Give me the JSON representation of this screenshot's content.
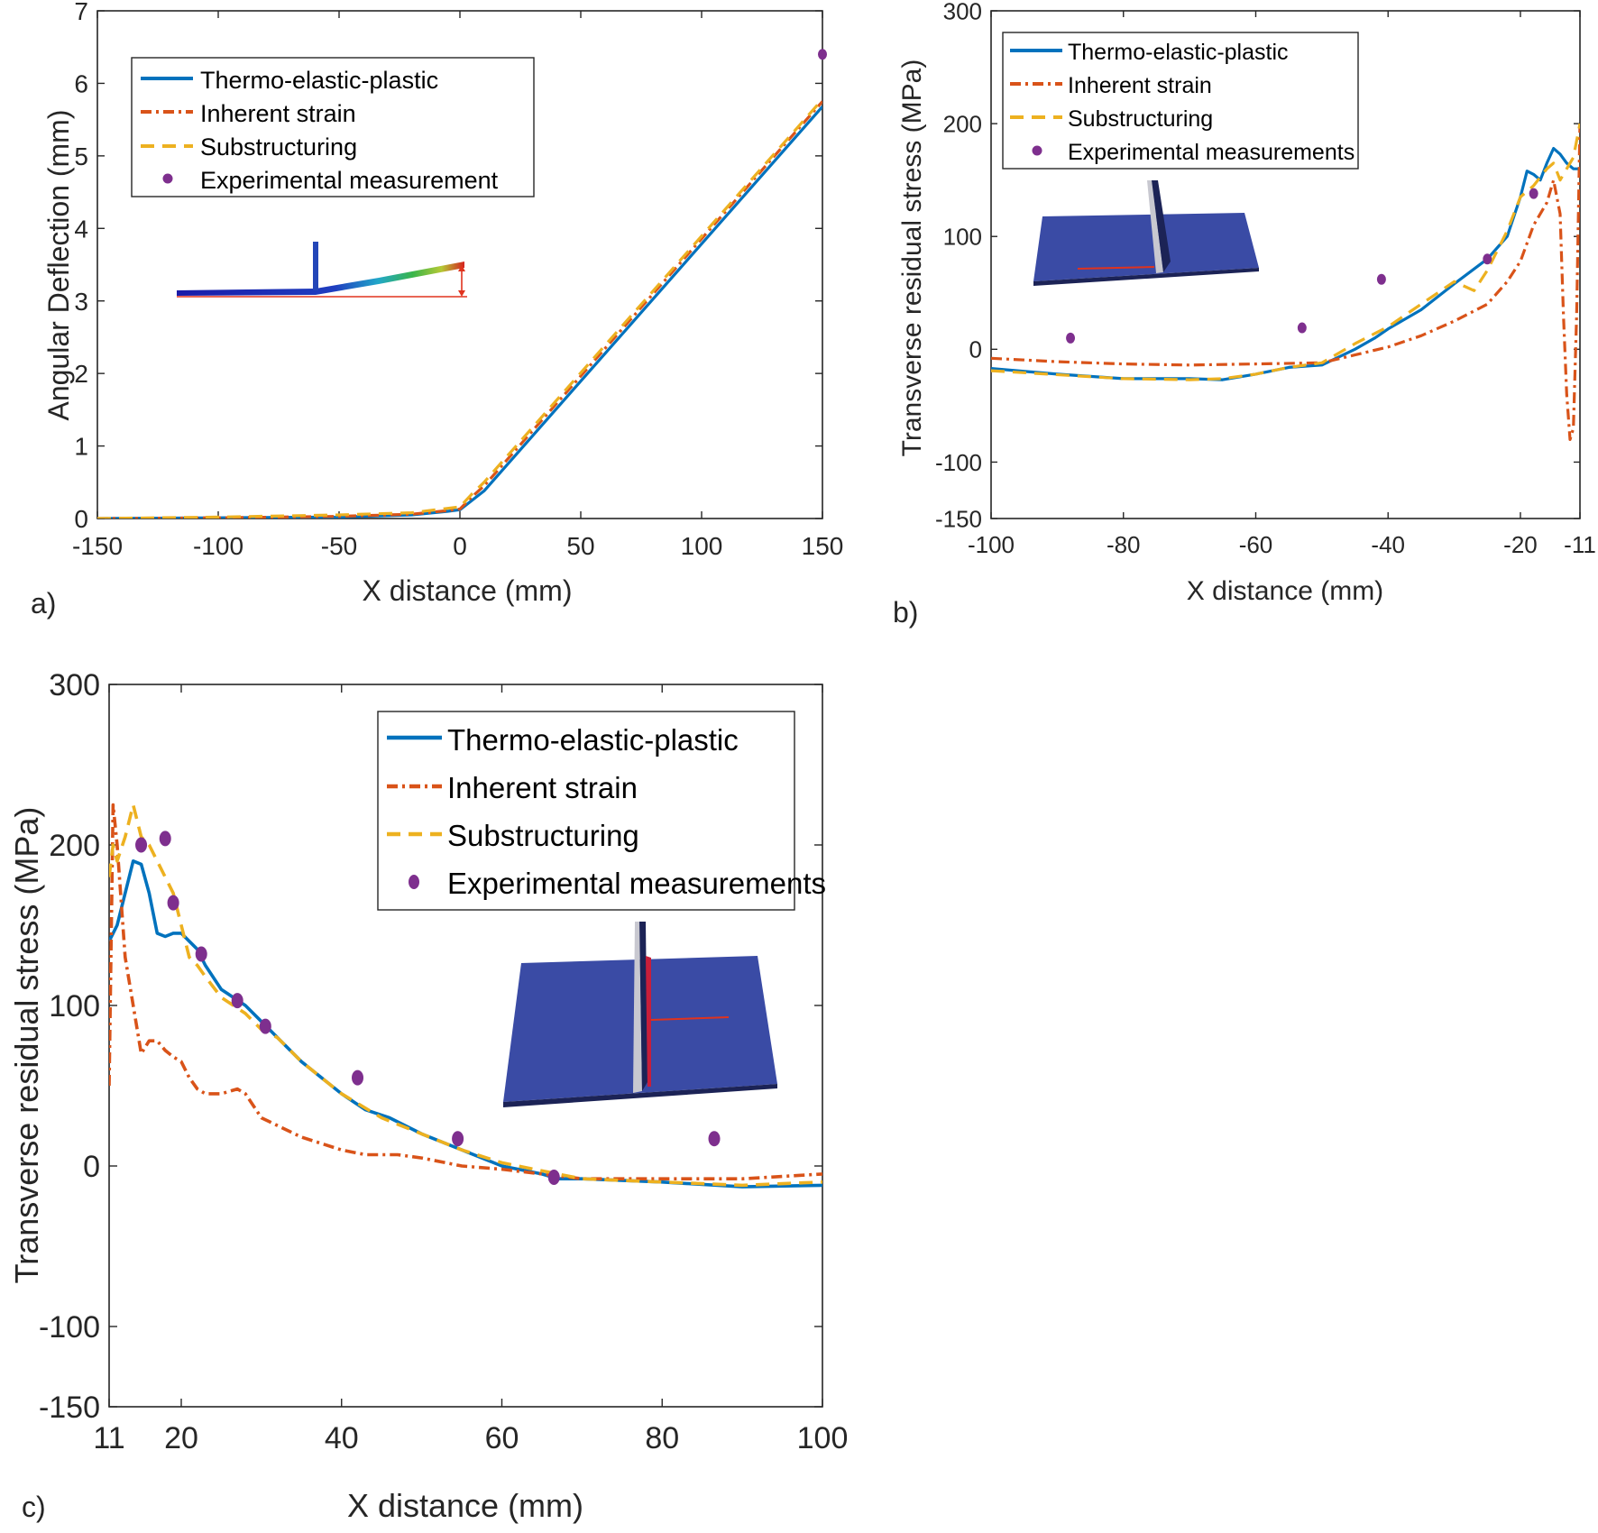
{
  "colors": {
    "tep": "#0072BD",
    "inherent": "#D95319",
    "substructuring": "#EDB120",
    "experimental": "#7E2F8E",
    "plate": "#3A4BA5",
    "axis": "#262626"
  },
  "chart_data": [
    {
      "panel": "a)",
      "type": "line",
      "title": "",
      "xlabel": "X distance (mm)",
      "ylabel": "Angular Deflection (mm)",
      "xlim": [
        -150,
        150
      ],
      "ylim": [
        0,
        7
      ],
      "xticks": [
        -150,
        -100,
        -50,
        0,
        50,
        100,
        150
      ],
      "yticks": [
        0,
        1,
        2,
        3,
        4,
        5,
        6,
        7
      ],
      "legend_position": "top-left",
      "inset": "t-joint-deflection",
      "series": [
        {
          "name": "Thermo-elastic-plastic",
          "style": "solid",
          "color_key": "tep",
          "x": [
            -150,
            -100,
            -50,
            -20,
            -5,
            0,
            5,
            10,
            150
          ],
          "y": [
            0,
            0.01,
            0.02,
            0.05,
            0.1,
            0.12,
            0.25,
            0.38,
            5.68
          ]
        },
        {
          "name": "Inherent strain",
          "style": "dashdot",
          "color_key": "inherent",
          "x": [
            -150,
            -100,
            -50,
            -20,
            -5,
            0,
            5,
            10,
            150
          ],
          "y": [
            0,
            0.01,
            0.03,
            0.06,
            0.11,
            0.13,
            0.3,
            0.45,
            5.75
          ]
        },
        {
          "name": "Substructuring",
          "style": "dashed",
          "color_key": "substructuring",
          "x": [
            -150,
            -100,
            -50,
            -20,
            -5,
            0,
            5,
            10,
            150
          ],
          "y": [
            0,
            0.02,
            0.05,
            0.08,
            0.14,
            0.16,
            0.34,
            0.5,
            5.78
          ]
        },
        {
          "name": "Experimental measurement",
          "style": "marker",
          "color_key": "experimental",
          "x": [
            150
          ],
          "y": [
            6.4
          ]
        }
      ]
    },
    {
      "panel": "b)",
      "type": "line",
      "title": "",
      "xlabel": "X distance (mm)",
      "ylabel": "Transverse residual stress (MPa)",
      "xlim": [
        -100,
        -11
      ],
      "ylim": [
        -150,
        300
      ],
      "xticks": [
        -100,
        -80,
        -60,
        -40,
        -20,
        -11
      ],
      "yticks": [
        -150,
        -100,
        0,
        100,
        200,
        300
      ],
      "legend_position": "top-left",
      "inset": "t-joint-plate",
      "series": [
        {
          "name": "Thermo-elastic-plastic",
          "style": "solid",
          "color_key": "tep",
          "x": [
            -100,
            -90,
            -80,
            -70,
            -65,
            -60,
            -55,
            -50,
            -45,
            -42,
            -40,
            -35,
            -30,
            -25,
            -22,
            -20,
            -19,
            -18,
            -17,
            -16,
            -15,
            -14,
            -13,
            -12,
            -11
          ],
          "y": [
            -17,
            -22,
            -26,
            -26,
            -27,
            -22,
            -16,
            -14,
            0,
            10,
            18,
            35,
            58,
            80,
            100,
            135,
            158,
            155,
            150,
            165,
            178,
            173,
            165,
            160,
            160
          ]
        },
        {
          "name": "Inherent strain",
          "style": "dashdot",
          "color_key": "inherent",
          "x": [
            -100,
            -90,
            -80,
            -70,
            -60,
            -50,
            -45,
            -40,
            -35,
            -30,
            -25,
            -22,
            -20,
            -18,
            -16,
            -15,
            -14,
            -13.5,
            -13,
            -12.5,
            -12,
            -11.5,
            -11
          ],
          "y": [
            -8,
            -11,
            -13,
            -14,
            -13,
            -12,
            -5,
            2,
            12,
            25,
            40,
            60,
            78,
            110,
            130,
            150,
            120,
            30,
            -40,
            -80,
            -70,
            30,
            200
          ]
        },
        {
          "name": "Substructuring",
          "style": "dashed",
          "color_key": "substructuring",
          "x": [
            -100,
            -80,
            -70,
            -65,
            -60,
            -55,
            -50,
            -45,
            -40,
            -35,
            -30,
            -27,
            -25,
            -22,
            -20,
            -18,
            -16,
            -15,
            -14,
            -13,
            -12,
            -11
          ],
          "y": [
            -19,
            -26,
            -27,
            -26,
            -22,
            -16,
            -12,
            5,
            20,
            40,
            60,
            52,
            70,
            105,
            135,
            145,
            160,
            165,
            150,
            160,
            170,
            200
          ]
        },
        {
          "name": "Experimental measurements",
          "style": "marker",
          "color_key": "experimental",
          "x": [
            -88,
            -53,
            -41,
            -25,
            -18
          ],
          "y": [
            10,
            19,
            62,
            80,
            138
          ]
        }
      ]
    },
    {
      "panel": "c)",
      "type": "line",
      "title": "",
      "xlabel": "X distance (mm)",
      "ylabel": "Transverse residual stress (MPa)",
      "xlim": [
        11,
        100
      ],
      "ylim": [
        -150,
        300
      ],
      "xticks": [
        11,
        20,
        40,
        60,
        80,
        100
      ],
      "yticks": [
        -150,
        -100,
        0,
        100,
        200,
        300
      ],
      "legend_position": "top-right",
      "inset": "t-joint-plate",
      "series": [
        {
          "name": "Thermo-elastic-plastic",
          "style": "solid",
          "color_key": "tep",
          "x": [
            11,
            12,
            13,
            14,
            15,
            16,
            17,
            18,
            19,
            20,
            21,
            22,
            23,
            25,
            28,
            30,
            35,
            40,
            43,
            46,
            50,
            55,
            60,
            65,
            67,
            70,
            80,
            90,
            100
          ],
          "y": [
            140,
            150,
            170,
            190,
            188,
            170,
            145,
            143,
            145,
            145,
            140,
            135,
            125,
            110,
            100,
            90,
            65,
            45,
            35,
            30,
            20,
            10,
            0,
            -5,
            -8,
            -8,
            -10,
            -13,
            -12
          ]
        },
        {
          "name": "Inherent strain",
          "style": "dashdot",
          "color_key": "inherent",
          "x": [
            11,
            11.5,
            12,
            13,
            14,
            15,
            16,
            17,
            18,
            19,
            20,
            21,
            22,
            23,
            24,
            25,
            27,
            28,
            30,
            35,
            40,
            43,
            47,
            50,
            55,
            60,
            65,
            70,
            80,
            90,
            100
          ],
          "y": [
            50,
            225,
            200,
            130,
            100,
            70,
            78,
            78,
            72,
            68,
            65,
            55,
            48,
            45,
            45,
            45,
            48,
            45,
            30,
            18,
            10,
            7,
            7,
            5,
            0,
            -2,
            -5,
            -8,
            -8,
            -8,
            -5
          ]
        },
        {
          "name": "Substructuring",
          "style": "dashed",
          "color_key": "substructuring",
          "x": [
            11,
            11.5,
            12,
            13,
            14,
            15,
            16,
            17,
            18,
            19,
            20,
            21,
            22,
            23,
            25,
            28,
            30,
            32,
            35,
            40,
            45,
            50,
            55,
            60,
            67,
            70,
            80,
            90,
            100
          ],
          "y": [
            180,
            200,
            190,
            205,
            225,
            205,
            200,
            190,
            180,
            170,
            150,
            130,
            125,
            118,
            105,
            95,
            85,
            80,
            65,
            45,
            30,
            20,
            10,
            2,
            -5,
            -8,
            -10,
            -12,
            -10
          ]
        },
        {
          "name": "Experimental measurements",
          "style": "marker",
          "color_key": "experimental",
          "x": [
            15,
            18,
            19,
            22.5,
            27,
            30.5,
            42,
            54.5,
            66.5,
            86.5
          ],
          "y": [
            200,
            204,
            164,
            132,
            103,
            87,
            55,
            17,
            -7,
            17
          ]
        }
      ]
    }
  ]
}
